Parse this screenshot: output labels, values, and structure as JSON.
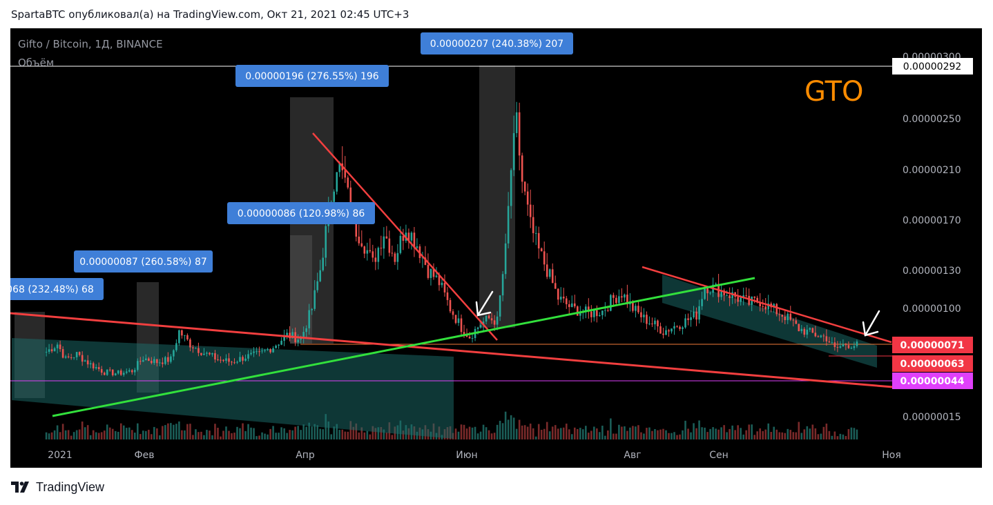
{
  "header": {
    "published_text": "SpartaBTC опубликовал(а) на TradingView.com, Окт 21, 2021 02:45 UTC+3"
  },
  "footer": {
    "brand": "TradingView",
    "logo_icon": "tradingview-logo-icon"
  },
  "chart_data": {
    "type": "candlestick",
    "symbol_line": "Gifto / Bitcoin, 1Д, BINANCE",
    "volume_label": "Объём",
    "ticker_watermark": "GTO",
    "x_tick_labels": [
      "2021",
      "Фев",
      "Апр",
      "Июн",
      "Авг",
      "Сен",
      "Ноя"
    ],
    "y_tick_labels": [
      "0.00000300",
      "0.00000250",
      "0.00000210",
      "0.00000170",
      "0.00000130",
      "0.00000100",
      "0.00000015"
    ],
    "price_tags": [
      {
        "value": "0.00000292",
        "color": "#ffffff",
        "text_color": "#000000"
      },
      {
        "value": "0.00000071",
        "color": "#f23645",
        "text_color": "#ffffff"
      },
      {
        "value": "0.00000063",
        "color": "#f23645",
        "text_color": "#ffffff"
      },
      {
        "value": "0.00000044",
        "color": "#e040fb",
        "text_color": "#ffffff"
      }
    ],
    "measure_labels": [
      {
        "text": "068 (232.48%) 68"
      },
      {
        "text": "0.00000087 (260.58%) 87"
      },
      {
        "text": "0.00000196 (276.55%) 196"
      },
      {
        "text": "0.00000086 (120.98%) 86"
      },
      {
        "text": "0.00000207 (240.38%) 207"
      }
    ],
    "price_path": [
      [
        "2021-01-01",
        66
      ],
      [
        "2021-01-05",
        72
      ],
      [
        "2021-01-08",
        60
      ],
      [
        "2021-01-12",
        64
      ],
      [
        "2021-01-17",
        56
      ],
      [
        "2021-01-22",
        50
      ],
      [
        "2021-01-27",
        49
      ],
      [
        "2021-02-01",
        51
      ],
      [
        "2021-02-05",
        61
      ],
      [
        "2021-02-10",
        58
      ],
      [
        "2021-02-15",
        60
      ],
      [
        "2021-02-18",
        82
      ],
      [
        "2021-02-22",
        72
      ],
      [
        "2021-02-27",
        65
      ],
      [
        "2021-03-04",
        60
      ],
      [
        "2021-03-09",
        58
      ],
      [
        "2021-03-14",
        62
      ],
      [
        "2021-03-19",
        64
      ],
      [
        "2021-03-24",
        70
      ],
      [
        "2021-03-29",
        79
      ],
      [
        "2021-04-03",
        76
      ],
      [
        "2021-04-07",
        100
      ],
      [
        "2021-04-10",
        130
      ],
      [
        "2021-04-13",
        175
      ],
      [
        "2021-04-16",
        215
      ],
      [
        "2021-04-19",
        200
      ],
      [
        "2021-04-22",
        165
      ],
      [
        "2021-04-25",
        155
      ],
      [
        "2021-04-29",
        135
      ],
      [
        "2021-05-03",
        160
      ],
      [
        "2021-05-07",
        140
      ],
      [
        "2021-05-11",
        165
      ],
      [
        "2021-05-15",
        150
      ],
      [
        "2021-05-19",
        130
      ],
      [
        "2021-05-23",
        120
      ],
      [
        "2021-05-27",
        100
      ],
      [
        "2021-05-31",
        85
      ],
      [
        "2021-06-03",
        78
      ],
      [
        "2021-06-07",
        88
      ],
      [
        "2021-06-10",
        92
      ],
      [
        "2021-06-13",
        90
      ],
      [
        "2021-06-16",
        145
      ],
      [
        "2021-06-18",
        210
      ],
      [
        "2021-06-20",
        245
      ],
      [
        "2021-06-22",
        200
      ],
      [
        "2021-06-25",
        165
      ],
      [
        "2021-06-28",
        145
      ],
      [
        "2021-07-01",
        130
      ],
      [
        "2021-07-05",
        108
      ],
      [
        "2021-07-10",
        100
      ],
      [
        "2021-07-16",
        96
      ],
      [
        "2021-07-21",
        98
      ],
      [
        "2021-07-25",
        108
      ],
      [
        "2021-07-28",
        112
      ],
      [
        "2021-08-01",
        100
      ],
      [
        "2021-08-05",
        92
      ],
      [
        "2021-08-09",
        87
      ],
      [
        "2021-08-12",
        82
      ],
      [
        "2021-08-16",
        86
      ],
      [
        "2021-08-20",
        90
      ],
      [
        "2021-08-24",
        95
      ],
      [
        "2021-08-27",
        118
      ],
      [
        "2021-08-31",
        115
      ],
      [
        "2021-09-04",
        112
      ],
      [
        "2021-09-08",
        108
      ],
      [
        "2021-09-12",
        104
      ],
      [
        "2021-09-16",
        106
      ],
      [
        "2021-09-20",
        100
      ],
      [
        "2021-09-25",
        94
      ],
      [
        "2021-09-30",
        84
      ],
      [
        "2021-10-05",
        80
      ],
      [
        "2021-10-10",
        77
      ],
      [
        "2021-10-13",
        68
      ],
      [
        "2021-10-17",
        72
      ],
      [
        "2021-10-21",
        71
      ]
    ]
  }
}
